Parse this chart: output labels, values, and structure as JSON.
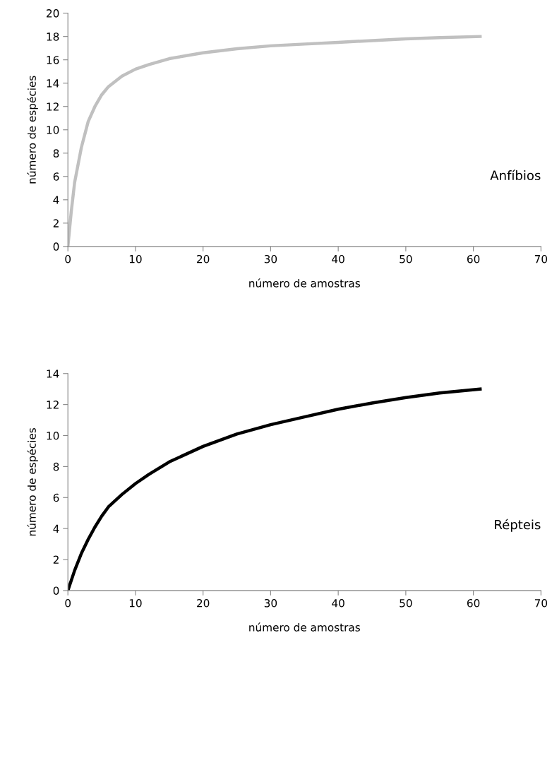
{
  "chart_data": [
    {
      "type": "line",
      "xlabel": "número de amostras",
      "ylabel": "número de espécies",
      "annotations": [
        "Anfíbios"
      ],
      "xlim": [
        0,
        70
      ],
      "xticks": [
        0,
        10,
        20,
        30,
        40,
        50,
        60,
        70
      ],
      "ylim": [
        0,
        20
      ],
      "yticks": [
        0,
        2,
        4,
        6,
        8,
        10,
        12,
        14,
        16,
        18,
        20
      ],
      "grid": false,
      "legend": false,
      "series": [
        {
          "color": "#c0c0c0",
          "x": [
            0,
            0.5,
            1,
            2,
            3,
            4,
            5,
            6,
            8,
            10,
            12,
            15,
            20,
            25,
            30,
            35,
            40,
            45,
            50,
            55,
            61
          ],
          "values": [
            0,
            3.0,
            5.5,
            8.5,
            10.7,
            12.0,
            13.0,
            13.7,
            14.6,
            15.2,
            15.6,
            16.1,
            16.6,
            16.95,
            17.2,
            17.35,
            17.5,
            17.65,
            17.8,
            17.9,
            18.0
          ]
        }
      ]
    },
    {
      "type": "line",
      "xlabel": "número de amostras",
      "ylabel": "número de espécies",
      "annotations": [
        "Répteis"
      ],
      "xlim": [
        0,
        70
      ],
      "xticks": [
        0,
        10,
        20,
        30,
        40,
        50,
        60,
        70
      ],
      "ylim": [
        0,
        14
      ],
      "yticks": [
        0,
        2,
        4,
        6,
        8,
        10,
        12,
        14
      ],
      "grid": false,
      "legend": false,
      "series": [
        {
          "color": "#000000",
          "x": [
            0,
            1,
            2,
            3,
            4,
            5,
            6,
            8,
            10,
            12,
            15,
            20,
            25,
            30,
            35,
            40,
            45,
            50,
            55,
            61
          ],
          "values": [
            0,
            1.3,
            2.4,
            3.3,
            4.1,
            4.8,
            5.4,
            6.2,
            6.9,
            7.5,
            8.3,
            9.3,
            10.1,
            10.7,
            11.2,
            11.7,
            12.1,
            12.45,
            12.75,
            13.0
          ]
        }
      ]
    }
  ]
}
